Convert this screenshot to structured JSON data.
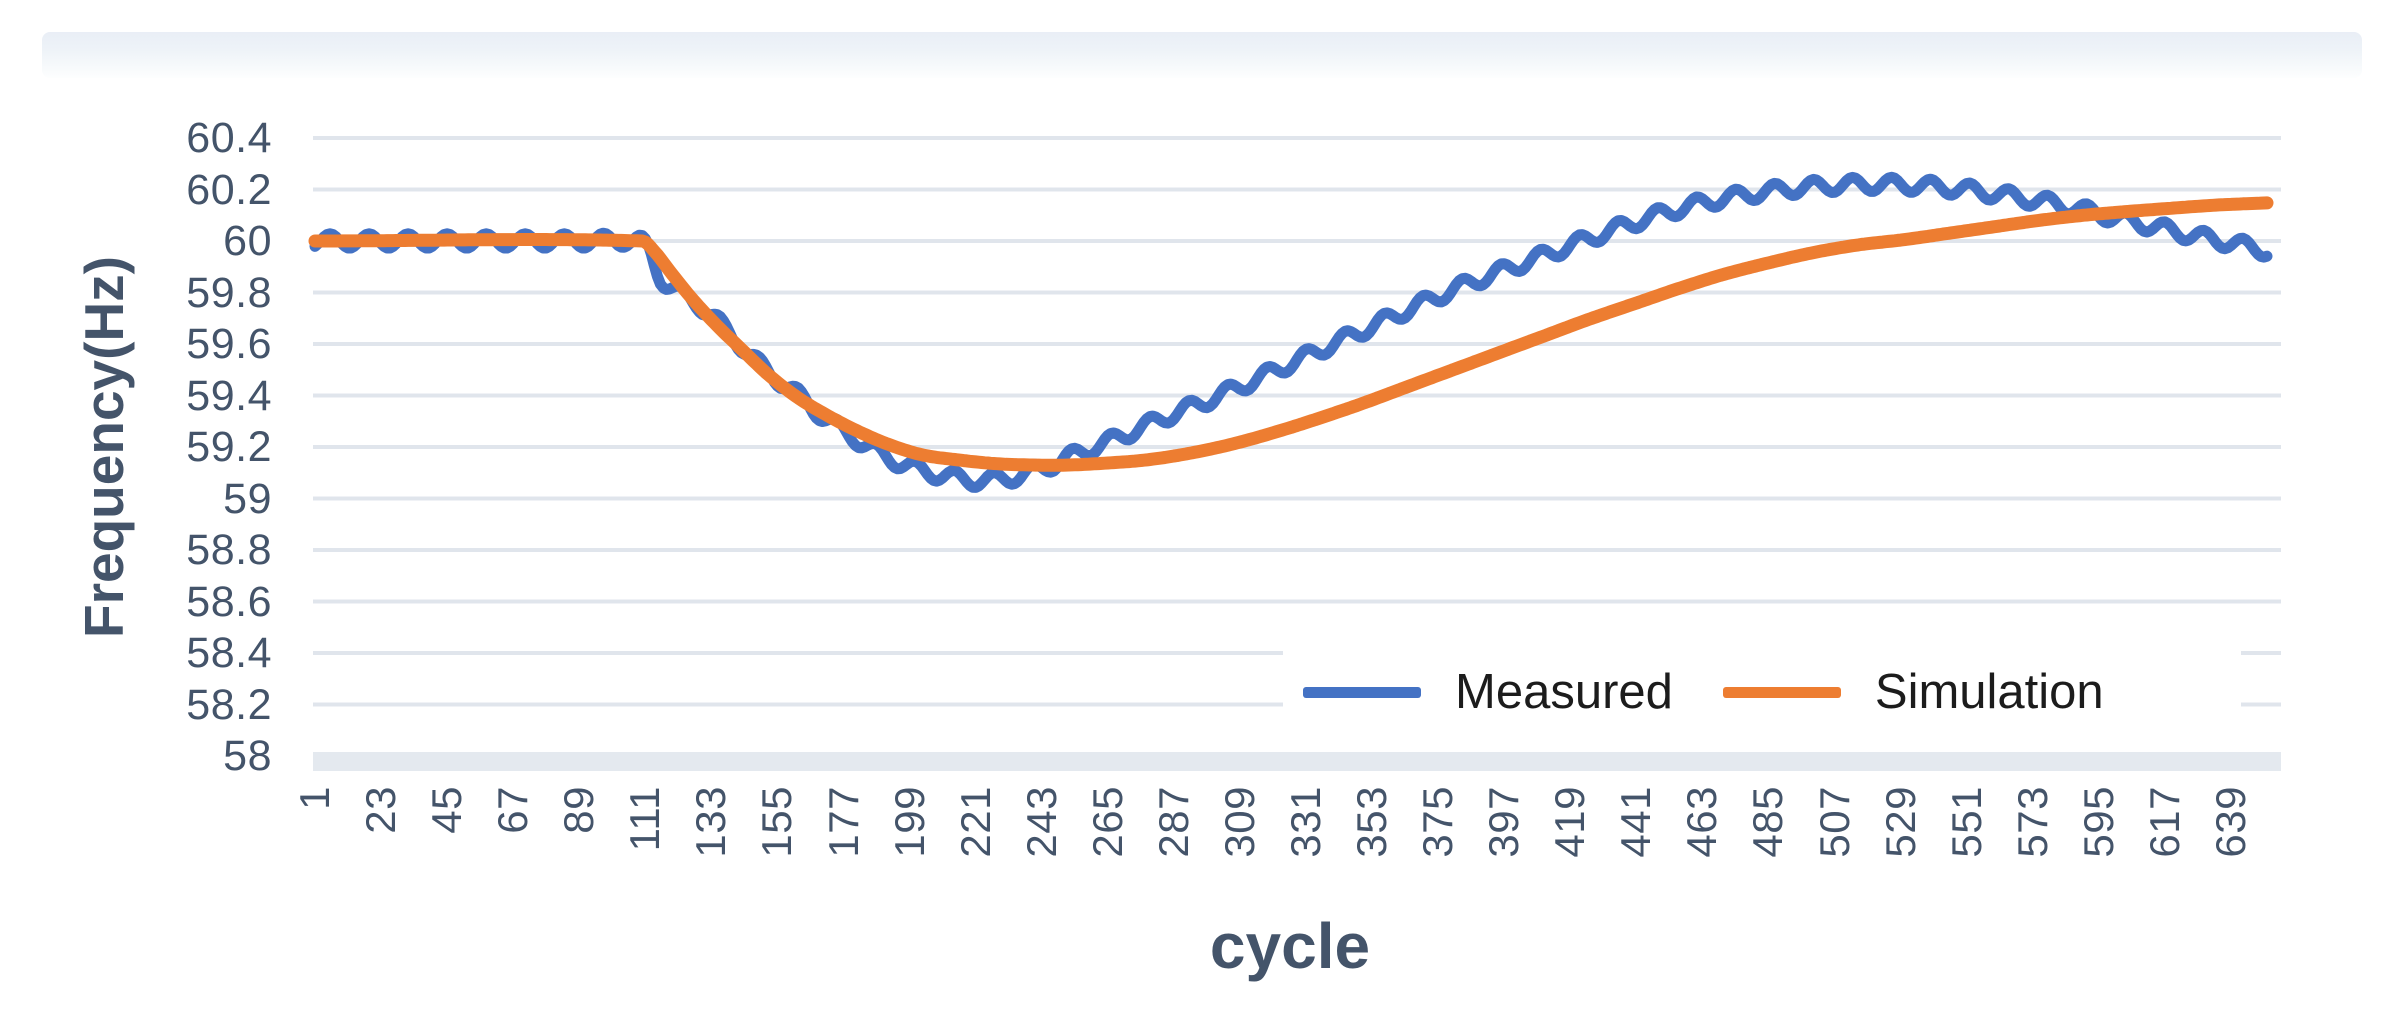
{
  "chart_data": {
    "type": "line",
    "title": "",
    "xlabel": "cycle",
    "ylabel": "Frequency(Hz)",
    "ylim": [
      58,
      60.4
    ],
    "ytick_step": 0.2,
    "ytick_labels": [
      "60.4",
      "60.2",
      "60",
      "59.8",
      "59.6",
      "59.4",
      "59.2",
      "59",
      "58.8",
      "58.6",
      "58.4",
      "58.2",
      "58"
    ],
    "xtick_labels": [
      "1",
      "23",
      "45",
      "67",
      "89",
      "111",
      "133",
      "155",
      "177",
      "199",
      "221",
      "243",
      "265",
      "287",
      "309",
      "331",
      "353",
      "375",
      "397",
      "419",
      "441",
      "463",
      "485",
      "507",
      "529",
      "551",
      "573",
      "595",
      "617",
      "639"
    ],
    "x_range": [
      1,
      651
    ],
    "grid": true,
    "legend": {
      "position": "inside-right",
      "background": "#ffffff"
    },
    "colors": {
      "axis_text": "#44546A",
      "legend_text": "#1c1c1c",
      "gridline": "#e0e5ec",
      "axis_band": "#e4e9ef"
    },
    "series": [
      {
        "name": "Measured",
        "color": "#4472C4",
        "line_width": 11,
        "ripple": {
          "amplitude": 0.028,
          "wavelength": 13,
          "peak_at": 110
        },
        "keypoints": [
          [
            1,
            60
          ],
          [
            30,
            60
          ],
          [
            60,
            60
          ],
          [
            90,
            60
          ],
          [
            108,
            60
          ],
          [
            112,
            59.97
          ],
          [
            116,
            59.86
          ],
          [
            122,
            59.8
          ],
          [
            128,
            59.76
          ],
          [
            134,
            59.7
          ],
          [
            140,
            59.63
          ],
          [
            150,
            59.51
          ],
          [
            160,
            59.42
          ],
          [
            170,
            59.32
          ],
          [
            180,
            59.24
          ],
          [
            190,
            59.17
          ],
          [
            200,
            59.12
          ],
          [
            210,
            59.09
          ],
          [
            222,
            59.07
          ],
          [
            234,
            59.085
          ],
          [
            245,
            59.125
          ],
          [
            255,
            59.175
          ],
          [
            265,
            59.22
          ],
          [
            275,
            59.27
          ],
          [
            285,
            59.32
          ],
          [
            297,
            59.375
          ],
          [
            310,
            59.44
          ],
          [
            325,
            59.52
          ],
          [
            340,
            59.6
          ],
          [
            355,
            59.68
          ],
          [
            370,
            59.76
          ],
          [
            385,
            59.835
          ],
          [
            400,
            59.9
          ],
          [
            415,
            59.965
          ],
          [
            430,
            60.03
          ],
          [
            445,
            60.09
          ],
          [
            460,
            60.14
          ],
          [
            475,
            60.175
          ],
          [
            490,
            60.2
          ],
          [
            505,
            60.215
          ],
          [
            520,
            60.22
          ],
          [
            535,
            60.215
          ],
          [
            550,
            60.2
          ],
          [
            565,
            60.175
          ],
          [
            580,
            60.145
          ],
          [
            595,
            60.105
          ],
          [
            610,
            60.065
          ],
          [
            625,
            60.025
          ],
          [
            638,
            59.995
          ],
          [
            651,
            59.962
          ]
        ]
      },
      {
        "name": "Simulation",
        "color": "#ED7D31",
        "line_width": 13,
        "keypoints": [
          [
            1,
            60
          ],
          [
            110,
            60
          ],
          [
            114,
            59.96
          ],
          [
            120,
            59.87
          ],
          [
            127,
            59.77
          ],
          [
            135,
            59.67
          ],
          [
            143,
            59.58
          ],
          [
            152,
            59.48
          ],
          [
            162,
            59.39
          ],
          [
            172,
            59.32
          ],
          [
            182,
            59.26
          ],
          [
            192,
            59.21
          ],
          [
            203,
            59.17
          ],
          [
            215,
            59.15
          ],
          [
            228,
            59.135
          ],
          [
            240,
            59.13
          ],
          [
            252,
            59.13
          ],
          [
            265,
            59.138
          ],
          [
            278,
            59.15
          ],
          [
            292,
            59.175
          ],
          [
            306,
            59.21
          ],
          [
            320,
            59.255
          ],
          [
            335,
            59.31
          ],
          [
            350,
            59.37
          ],
          [
            365,
            59.435
          ],
          [
            380,
            59.5
          ],
          [
            395,
            59.565
          ],
          [
            410,
            59.63
          ],
          [
            425,
            59.695
          ],
          [
            440,
            59.755
          ],
          [
            455,
            59.815
          ],
          [
            470,
            59.87
          ],
          [
            485,
            59.915
          ],
          [
            500,
            59.955
          ],
          [
            515,
            59.985
          ],
          [
            530,
            60.005
          ],
          [
            545,
            60.03
          ],
          [
            560,
            60.055
          ],
          [
            575,
            60.08
          ],
          [
            590,
            60.1
          ],
          [
            605,
            60.115
          ],
          [
            620,
            60.128
          ],
          [
            635,
            60.14
          ],
          [
            651,
            60.148
          ]
        ]
      }
    ]
  }
}
